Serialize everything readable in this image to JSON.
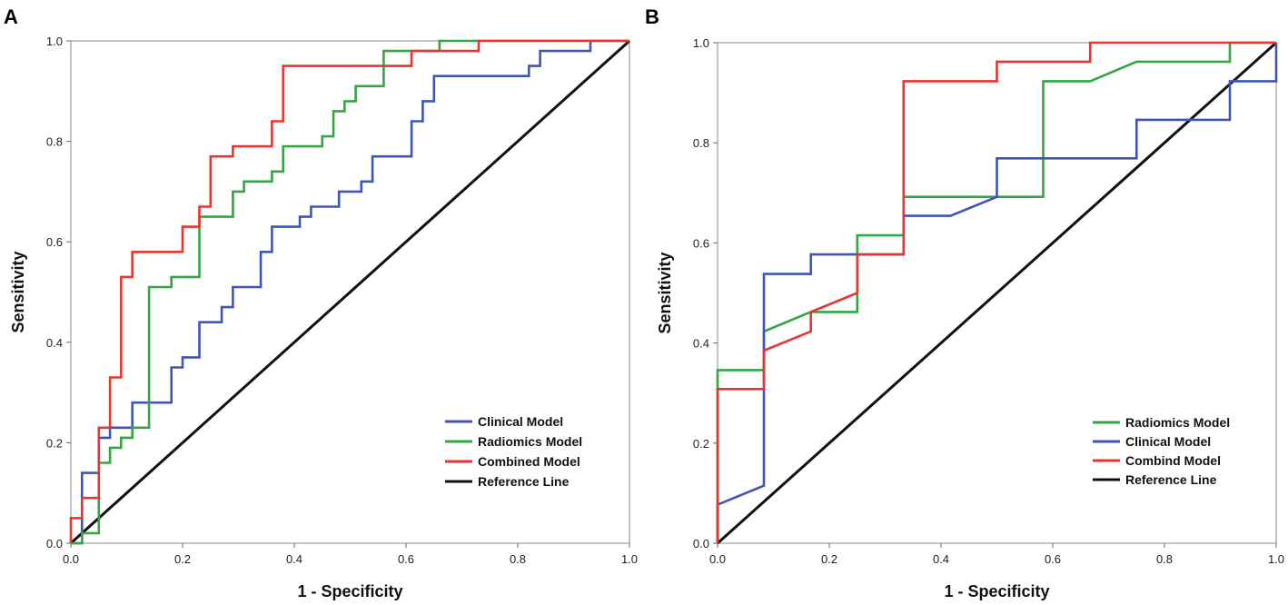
{
  "chart_data": [
    {
      "panel_label": "A",
      "type": "line",
      "xlabel": "1 - Specificity",
      "ylabel": "Sensitivity",
      "xlim": [
        0,
        1
      ],
      "ylim": [
        0,
        1
      ],
      "x_ticks": [
        "0.0",
        "0.2",
        "0.4",
        "0.6",
        "0.8",
        "1.0"
      ],
      "y_ticks": [
        "0.0",
        "0.2",
        "0.4",
        "0.6",
        "0.8",
        "1.0"
      ],
      "legend_position": "bottom-right",
      "series": [
        {
          "name": "Clinical Model",
          "color": "#3f55b5",
          "points": [
            [
              0,
              0
            ],
            [
              0.02,
              0
            ],
            [
              0.02,
              0.14
            ],
            [
              0.04,
              0.14
            ],
            [
              0.04,
              0.14
            ],
            [
              0.05,
              0.14
            ],
            [
              0.05,
              0.21
            ],
            [
              0.07,
              0.21
            ],
            [
              0.07,
              0.23
            ],
            [
              0.11,
              0.23
            ],
            [
              0.11,
              0.28
            ],
            [
              0.18,
              0.28
            ],
            [
              0.18,
              0.35
            ],
            [
              0.2,
              0.35
            ],
            [
              0.2,
              0.37
            ],
            [
              0.23,
              0.37
            ],
            [
              0.23,
              0.44
            ],
            [
              0.27,
              0.44
            ],
            [
              0.27,
              0.47
            ],
            [
              0.29,
              0.47
            ],
            [
              0.29,
              0.51
            ],
            [
              0.34,
              0.51
            ],
            [
              0.34,
              0.58
            ],
            [
              0.36,
              0.58
            ],
            [
              0.36,
              0.63
            ],
            [
              0.41,
              0.63
            ],
            [
              0.41,
              0.65
            ],
            [
              0.43,
              0.65
            ],
            [
              0.43,
              0.67
            ],
            [
              0.48,
              0.67
            ],
            [
              0.48,
              0.7
            ],
            [
              0.52,
              0.7
            ],
            [
              0.52,
              0.72
            ],
            [
              0.54,
              0.72
            ],
            [
              0.54,
              0.77
            ],
            [
              0.61,
              0.77
            ],
            [
              0.61,
              0.84
            ],
            [
              0.63,
              0.84
            ],
            [
              0.63,
              0.88
            ],
            [
              0.65,
              0.88
            ],
            [
              0.65,
              0.93
            ],
            [
              0.82,
              0.93
            ],
            [
              0.82,
              0.95
            ],
            [
              0.84,
              0.95
            ],
            [
              0.84,
              0.98
            ],
            [
              0.93,
              0.98
            ],
            [
              0.93,
              1.0
            ],
            [
              1.0,
              1.0
            ]
          ]
        },
        {
          "name": "Radiomics Model",
          "color": "#33a644",
          "points": [
            [
              0,
              0
            ],
            [
              0.02,
              0
            ],
            [
              0.02,
              0.02
            ],
            [
              0.05,
              0.02
            ],
            [
              0.05,
              0.16
            ],
            [
              0.07,
              0.16
            ],
            [
              0.07,
              0.19
            ],
            [
              0.09,
              0.19
            ],
            [
              0.09,
              0.21
            ],
            [
              0.11,
              0.21
            ],
            [
              0.11,
              0.23
            ],
            [
              0.14,
              0.23
            ],
            [
              0.14,
              0.51
            ],
            [
              0.18,
              0.51
            ],
            [
              0.18,
              0.53
            ],
            [
              0.23,
              0.53
            ],
            [
              0.23,
              0.65
            ],
            [
              0.29,
              0.65
            ],
            [
              0.29,
              0.7
            ],
            [
              0.31,
              0.7
            ],
            [
              0.31,
              0.72
            ],
            [
              0.36,
              0.72
            ],
            [
              0.36,
              0.74
            ],
            [
              0.38,
              0.74
            ],
            [
              0.38,
              0.79
            ],
            [
              0.45,
              0.79
            ],
            [
              0.45,
              0.81
            ],
            [
              0.47,
              0.81
            ],
            [
              0.47,
              0.86
            ],
            [
              0.49,
              0.86
            ],
            [
              0.49,
              0.88
            ],
            [
              0.51,
              0.88
            ],
            [
              0.51,
              0.91
            ],
            [
              0.56,
              0.91
            ],
            [
              0.56,
              0.98
            ],
            [
              0.66,
              0.98
            ],
            [
              0.66,
              1.0
            ],
            [
              1.0,
              1.0
            ]
          ]
        },
        {
          "name": "Combined Model",
          "color": "#e8352f",
          "points": [
            [
              0,
              0
            ],
            [
              0,
              0.05
            ],
            [
              0.02,
              0.05
            ],
            [
              0.02,
              0.09
            ],
            [
              0.05,
              0.09
            ],
            [
              0.05,
              0.23
            ],
            [
              0.07,
              0.23
            ],
            [
              0.07,
              0.33
            ],
            [
              0.09,
              0.33
            ],
            [
              0.09,
              0.53
            ],
            [
              0.11,
              0.53
            ],
            [
              0.11,
              0.58
            ],
            [
              0.2,
              0.58
            ],
            [
              0.2,
              0.63
            ],
            [
              0.23,
              0.63
            ],
            [
              0.23,
              0.67
            ],
            [
              0.25,
              0.67
            ],
            [
              0.25,
              0.77
            ],
            [
              0.29,
              0.77
            ],
            [
              0.29,
              0.79
            ],
            [
              0.36,
              0.79
            ],
            [
              0.36,
              0.84
            ],
            [
              0.38,
              0.84
            ],
            [
              0.38,
              0.95
            ],
            [
              0.61,
              0.95
            ],
            [
              0.61,
              0.98
            ],
            [
              0.73,
              0.98
            ],
            [
              0.73,
              1.0
            ],
            [
              1.0,
              1.0
            ]
          ]
        },
        {
          "name": "Reference Line",
          "color": "#111111",
          "points": [
            [
              0,
              0
            ],
            [
              1,
              1
            ]
          ]
        }
      ]
    },
    {
      "panel_label": "B",
      "type": "line",
      "xlabel": "1 - Specificity",
      "ylabel": "Sensitivity",
      "xlim": [
        0,
        1
      ],
      "ylim": [
        0,
        1
      ],
      "x_ticks": [
        "0.0",
        "0.2",
        "0.4",
        "0.6",
        "0.8",
        "1.0"
      ],
      "y_ticks": [
        "0.0",
        "0.2",
        "0.4",
        "0.6",
        "0.8",
        "1.0"
      ],
      "legend_position": "bottom-right",
      "series": [
        {
          "name": "Radiomics Model",
          "color": "#33a644",
          "points": [
            [
              0,
              0
            ],
            [
              0,
              0.346
            ],
            [
              0.083,
              0.346
            ],
            [
              0.083,
              0.423
            ],
            [
              0.167,
              0.462
            ],
            [
              0.25,
              0.462
            ],
            [
              0.25,
              0.615
            ],
            [
              0.333,
              0.615
            ],
            [
              0.333,
              0.692
            ],
            [
              0.5,
              0.692
            ],
            [
              0.583,
              0.692
            ],
            [
              0.583,
              0.923
            ],
            [
              0.667,
              0.923
            ],
            [
              0.75,
              0.962
            ],
            [
              0.917,
              0.962
            ],
            [
              0.917,
              1.0
            ],
            [
              1.0,
              1.0
            ]
          ]
        },
        {
          "name": "Clinical Model",
          "color": "#3f55b5",
          "points": [
            [
              0,
              0
            ],
            [
              0,
              0.077
            ],
            [
              0.083,
              0.115
            ],
            [
              0.083,
              0.538
            ],
            [
              0.167,
              0.538
            ],
            [
              0.167,
              0.577
            ],
            [
              0.333,
              0.577
            ],
            [
              0.333,
              0.654
            ],
            [
              0.417,
              0.654
            ],
            [
              0.5,
              0.692
            ],
            [
              0.5,
              0.769
            ],
            [
              0.75,
              0.769
            ],
            [
              0.75,
              0.846
            ],
            [
              0.917,
              0.846
            ],
            [
              0.917,
              0.923
            ],
            [
              1.0,
              0.923
            ],
            [
              1.0,
              1.0
            ]
          ]
        },
        {
          "name": "Combind Model",
          "color": "#e8352f",
          "points": [
            [
              0,
              0
            ],
            [
              0,
              0.308
            ],
            [
              0.083,
              0.308
            ],
            [
              0.083,
              0.385
            ],
            [
              0.167,
              0.423
            ],
            [
              0.167,
              0.462
            ],
            [
              0.25,
              0.5
            ],
            [
              0.25,
              0.577
            ],
            [
              0.333,
              0.577
            ],
            [
              0.333,
              0.923
            ],
            [
              0.417,
              0.923
            ],
            [
              0.5,
              0.923
            ],
            [
              0.5,
              0.962
            ],
            [
              0.667,
              0.962
            ],
            [
              0.667,
              1.0
            ],
            [
              1.0,
              1.0
            ]
          ]
        },
        {
          "name": "Reference Line",
          "color": "#111111",
          "points": [
            [
              0,
              0
            ],
            [
              1,
              1
            ]
          ]
        }
      ]
    }
  ]
}
